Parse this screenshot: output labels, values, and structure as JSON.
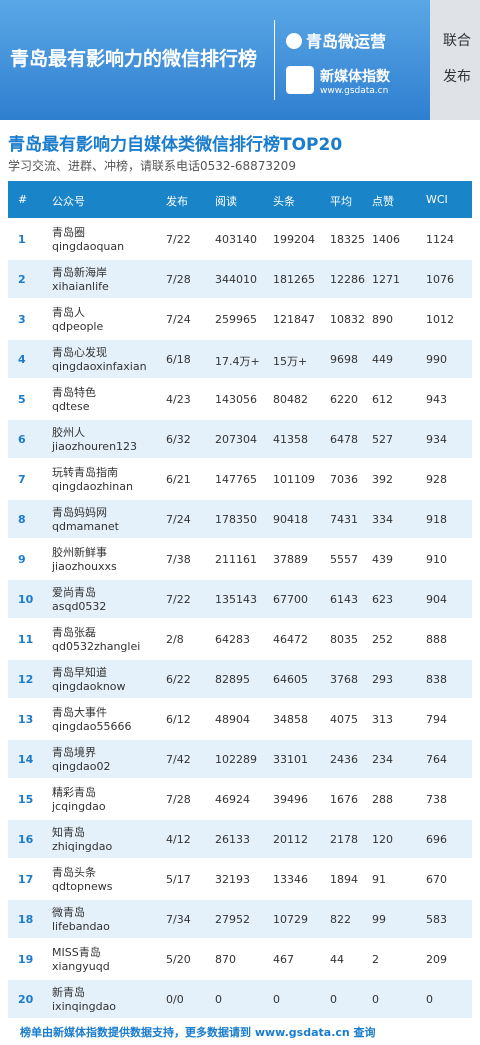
{
  "header": {
    "title": "青岛最有影响力的微信排行榜",
    "brand1": "青岛微运营",
    "brand2": "新媒体指数",
    "brand2_url": "www.gsdata.cn",
    "side": [
      "联合",
      "发布"
    ]
  },
  "heading": {
    "title": "青岛最有影响力自媒体类微信排行榜TOP20",
    "subtitle": "学习交流、进群、冲榜，请联系电话0532-68873209"
  },
  "table": {
    "columns": [
      "#",
      "公众号",
      "发布",
      "阅读",
      "头条",
      "平均",
      "点赞",
      "WCI"
    ],
    "rows": [
      [
        1,
        "青岛圈",
        "qingdaoquan",
        "7/22",
        403140,
        199204,
        18325,
        1406,
        1124
      ],
      [
        2,
        "青岛新海岸",
        "xihaianlife",
        "7/28",
        344010,
        181265,
        12286,
        1271,
        1076
      ],
      [
        3,
        "青岛人",
        "qdpeople",
        "7/24",
        259965,
        121847,
        10832,
        890,
        1012
      ],
      [
        4,
        "青岛心发现",
        "qingdaoxinfaxian",
        "6/18",
        "17.4万+",
        "15万+",
        9698,
        449,
        990
      ],
      [
        5,
        "青岛特色",
        "qdtese",
        "4/23",
        143056,
        80482,
        6220,
        612,
        943
      ],
      [
        6,
        "胶州人",
        "jiaozhouren123",
        "6/32",
        207304,
        41358,
        6478,
        527,
        934
      ],
      [
        7,
        "玩转青岛指南",
        "qingdaozhinan",
        "6/21",
        147765,
        101109,
        7036,
        392,
        928
      ],
      [
        8,
        "青岛妈妈网",
        "qdmamanet",
        "7/24",
        178350,
        90418,
        7431,
        334,
        918
      ],
      [
        9,
        "胶州新鲜事",
        "jiaozhouxxs",
        "7/38",
        211161,
        37889,
        5557,
        439,
        910
      ],
      [
        10,
        "爱尚青岛",
        "asqd0532",
        "7/22",
        135143,
        67700,
        6143,
        623,
        904
      ],
      [
        11,
        "青岛张磊",
        "qd0532zhanglei",
        "2/8",
        64283,
        46472,
        8035,
        252,
        888
      ],
      [
        12,
        "青岛早知道",
        "qingdaoknow",
        "6/22",
        82895,
        64605,
        3768,
        293,
        838
      ],
      [
        13,
        "青岛大事件",
        "qingdao55666",
        "6/12",
        48904,
        34858,
        4075,
        313,
        794
      ],
      [
        14,
        "青岛境界",
        "qingdao02",
        "7/42",
        102289,
        33101,
        2436,
        234,
        764
      ],
      [
        15,
        "精彩青岛",
        "jcqingdao",
        "7/28",
        46924,
        39496,
        1676,
        288,
        738
      ],
      [
        16,
        "知青岛",
        "zhiqingdao",
        "4/12",
        26133,
        20112,
        2178,
        120,
        696
      ],
      [
        17,
        "青岛头条",
        "qdtopnews",
        "5/17",
        32193,
        13346,
        1894,
        91,
        670
      ],
      [
        18,
        "微青岛",
        "lifebandao",
        "7/34",
        27952,
        10729,
        822,
        99,
        583
      ],
      [
        19,
        "MISS青岛",
        "xiangyuqd",
        "5/20",
        870,
        467,
        44,
        2,
        209
      ],
      [
        20,
        "新青岛",
        "ixinqingdao",
        "0/0",
        0,
        0,
        0,
        0,
        0
      ]
    ]
  },
  "footer": {
    "text": "榜单由新媒体指数提供数据支持，更多数据请到 www.gsdata.cn 查询"
  }
}
